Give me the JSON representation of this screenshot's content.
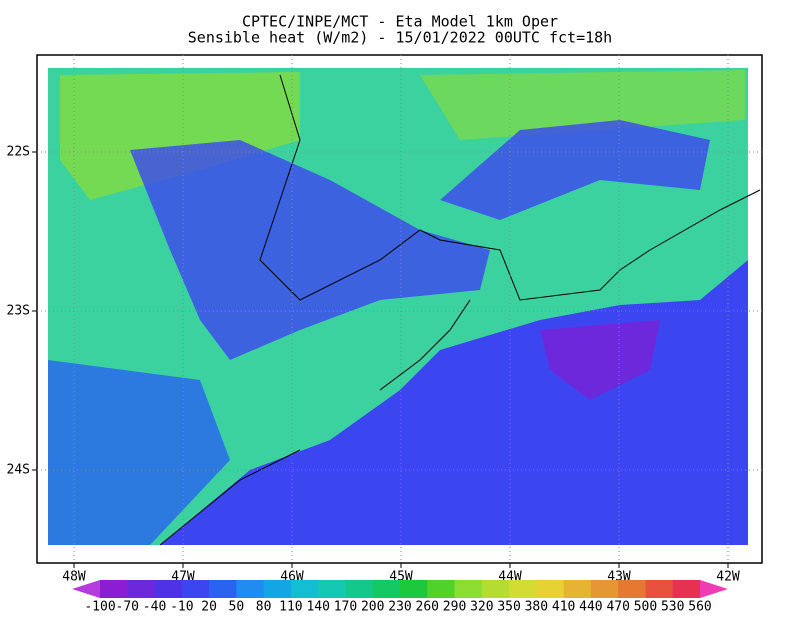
{
  "header": {
    "line1": "CPTEC/INPE/MCT -  Eta Model 1km Oper",
    "line2": "Sensible heat (W/m2) - 15/01/2022 00UTC fct=18h"
  },
  "map": {
    "lon_ticks": [
      "48W",
      "47W",
      "46W",
      "45W",
      "44W",
      "43W",
      "42W"
    ],
    "lat_ticks": [
      "22S",
      "23S",
      "24S"
    ]
  },
  "colorbar": {
    "labels": [
      -100,
      -70,
      -40,
      -10,
      20,
      50,
      80,
      110,
      140,
      170,
      200,
      230,
      260,
      290,
      320,
      350,
      380,
      410,
      440,
      470,
      500,
      530,
      560
    ],
    "colors": [
      "#b43cdc",
      "#8c1ed2",
      "#6e28dc",
      "#5032e6",
      "#3c46f0",
      "#2864f0",
      "#1e8cf0",
      "#14a5e6",
      "#14bed2",
      "#14c8b4",
      "#14c88c",
      "#14c864",
      "#1ec83c",
      "#50d228",
      "#8cdc32",
      "#b4dc32",
      "#d2dc32",
      "#e6d232",
      "#e6b432",
      "#e69632",
      "#e67832",
      "#e6503c",
      "#e63250",
      "#f03cb4"
    ]
  }
}
